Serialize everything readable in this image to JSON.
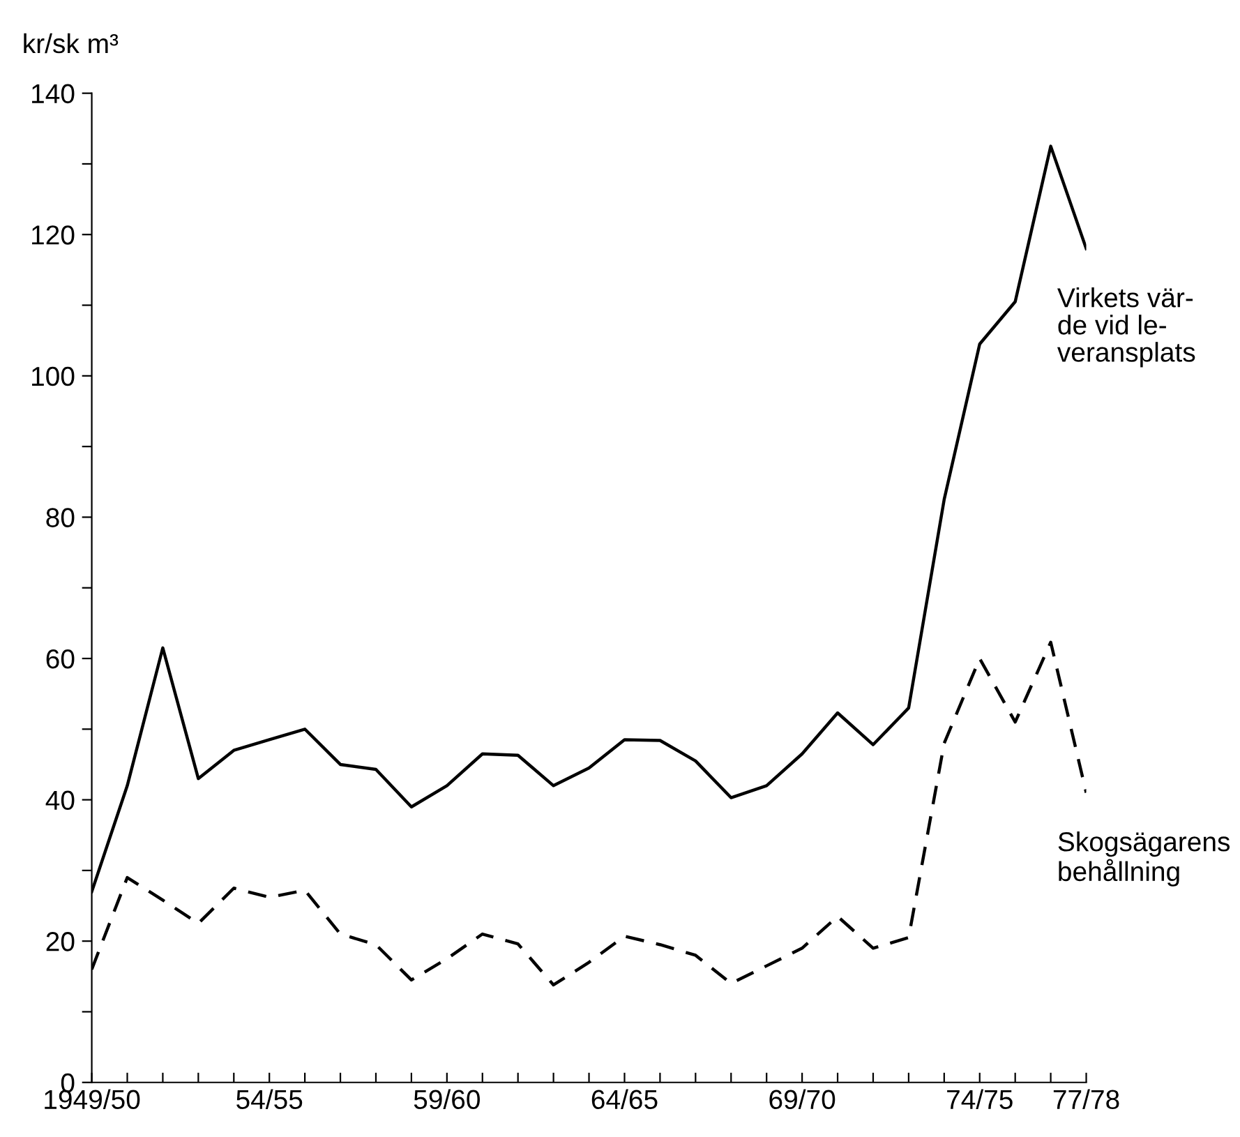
{
  "chart_data": {
    "type": "line",
    "ylabel": "kr/sk m³",
    "categories": [
      "1949/50",
      null,
      null,
      null,
      null,
      "54/55",
      null,
      null,
      null,
      null,
      "59/60",
      null,
      null,
      null,
      null,
      "64/65",
      null,
      null,
      null,
      null,
      "69/70",
      null,
      null,
      null,
      null,
      "74/75",
      null,
      null,
      "77/78"
    ],
    "series": [
      {
        "name": "Virkets vär-\nde vid le-\nveransplats",
        "color": "#000000",
        "line_style": "solid",
        "values": [
          27,
          42,
          61.5,
          43,
          47,
          48.5,
          50,
          45,
          44.3,
          39,
          42,
          46.5,
          46.3,
          42,
          44.5,
          48.5,
          48.4,
          45.5,
          40.3,
          42,
          46.5,
          52.3,
          47.8,
          53,
          82.5,
          104.5,
          110.5,
          132.5,
          118
        ]
      },
      {
        "name": "Skogsägarens\nbehållning",
        "color": "#000000",
        "line_style": "dashed",
        "values": [
          16,
          29,
          25.8,
          22.5,
          27.5,
          26.2,
          27.2,
          21,
          19.5,
          14.5,
          17.5,
          21,
          19.6,
          13.8,
          17,
          20.7,
          19.5,
          18,
          14,
          16.5,
          19,
          23.5,
          19,
          20.5,
          48,
          60,
          51,
          62.3,
          41
        ]
      }
    ],
    "ylim": [
      0,
      140
    ],
    "yticks": [
      0,
      {
        "value": 10,
        "label": null
      },
      20,
      {
        "value": 30,
        "label": null
      },
      40,
      {
        "value": 50,
        "label": null
      },
      60,
      {
        "value": 70,
        "label": null
      },
      80,
      {
        "value": 90,
        "label": null
      },
      100,
      {
        "value": 110,
        "label": null
      },
      120,
      {
        "value": 130,
        "label": null
      },
      140
    ],
    "grid": false,
    "legend": false,
    "marker": "none"
  }
}
